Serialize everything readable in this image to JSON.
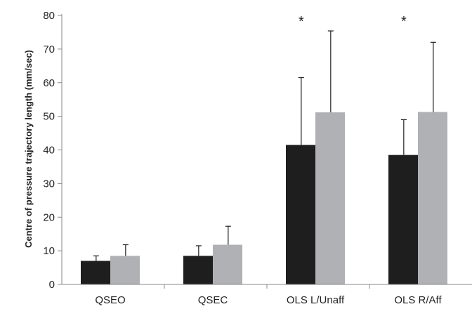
{
  "chart_data": {
    "type": "bar",
    "title": "",
    "xlabel": "",
    "ylabel": "Centre of pressure trajectory length (mm/sec)",
    "ylim": [
      0,
      80
    ],
    "yticks": [
      0,
      10,
      20,
      30,
      40,
      50,
      60,
      70,
      80
    ],
    "categories": [
      "QSEO",
      "QSEC",
      "OLS L/Unaff",
      "OLS R/Aff"
    ],
    "series": [
      {
        "color": "#1e1e1e",
        "values": [
          7,
          8.5,
          41.5,
          38.5
        ],
        "error": [
          1.5,
          3,
          20,
          10.5
        ]
      },
      {
        "color": "#b0b1b4",
        "values": [
          8.5,
          11.8,
          51.2,
          51.3
        ],
        "error": [
          3.3,
          5.5,
          24.2,
          20.7
        ]
      }
    ],
    "annotations": [
      {
        "category": "OLS L/Unaff",
        "text": "*"
      },
      {
        "category": "OLS R/Aff",
        "text": "*"
      }
    ],
    "grid": false,
    "legend": "none"
  }
}
